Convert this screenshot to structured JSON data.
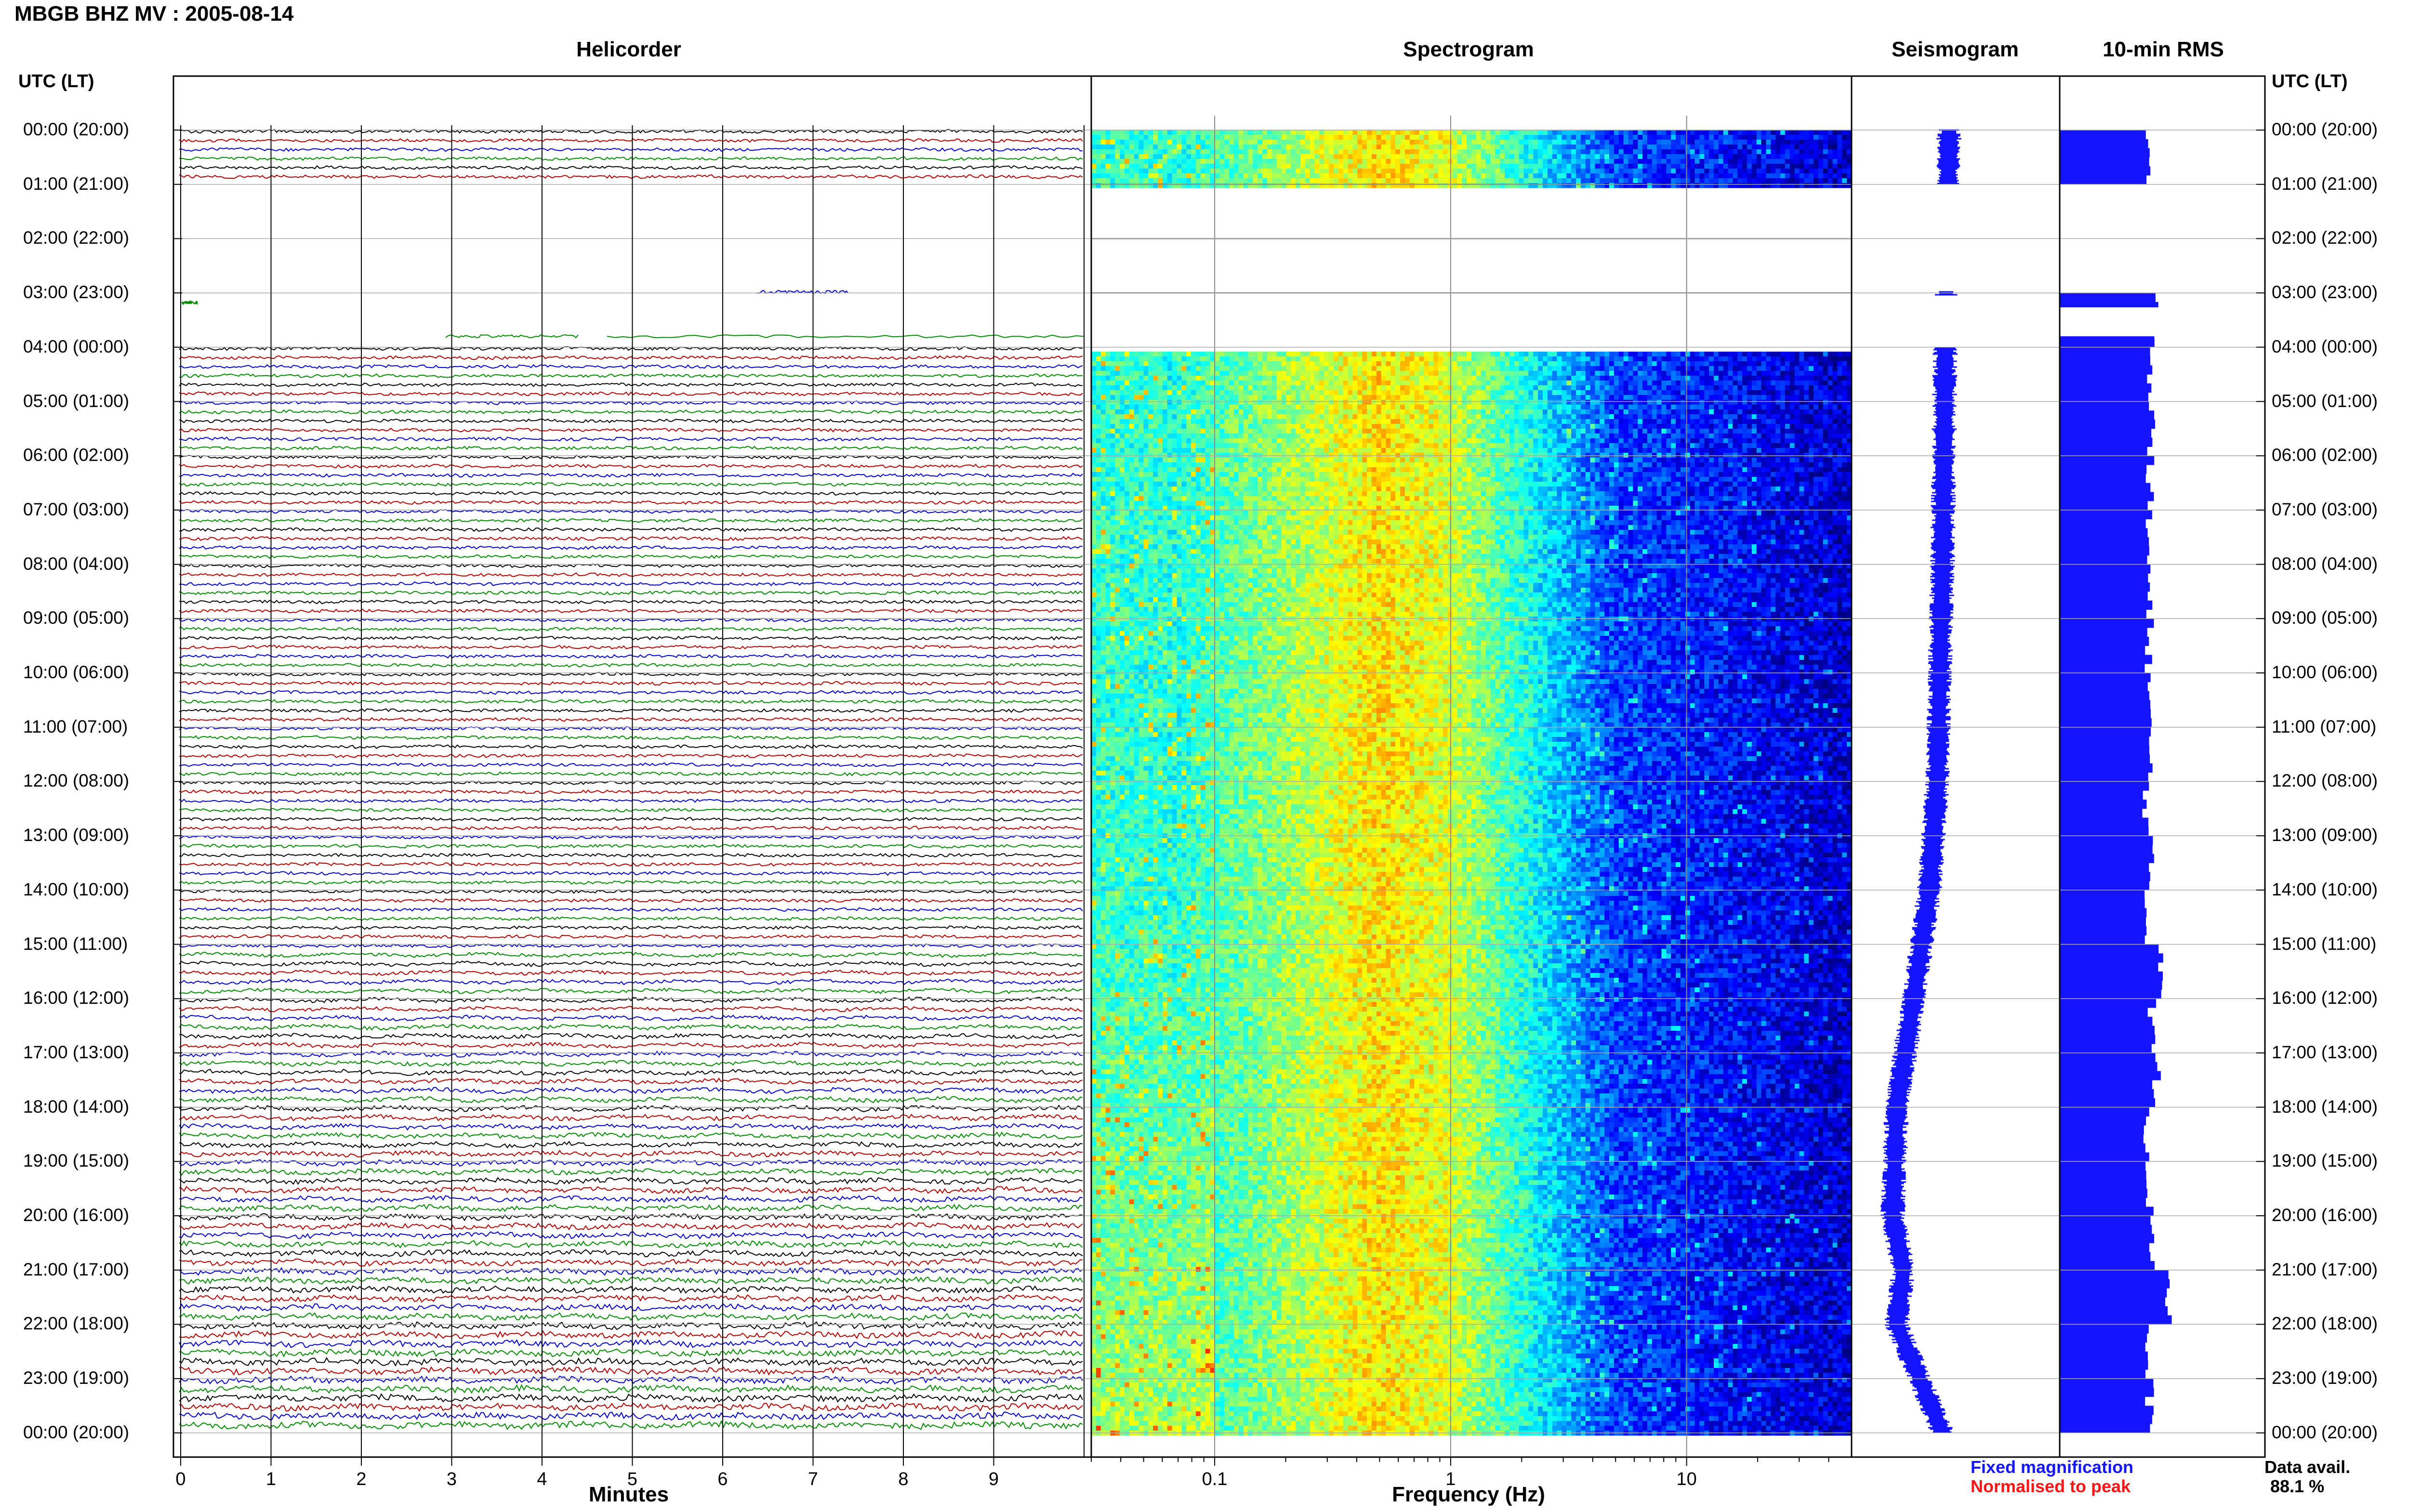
{
  "header": {
    "title": "MBGB BHZ MV : 2005-08-14"
  },
  "panels": {
    "helicorder": "Helicorder",
    "spectrogram": "Spectrogram",
    "seismogram": "Seismogram",
    "rms": "10-min RMS"
  },
  "time_axis": {
    "header_left": "UTC (LT)",
    "header_right": "UTC (LT)",
    "labels": [
      "00:00 (20:00)",
      "01:00 (21:00)",
      "02:00 (22:00)",
      "03:00 (23:00)",
      "04:00 (00:00)",
      "05:00 (01:00)",
      "06:00 (02:00)",
      "07:00 (03:00)",
      "08:00 (04:00)",
      "09:00 (05:00)",
      "10:00 (06:00)",
      "11:00 (07:00)",
      "12:00 (08:00)",
      "13:00 (09:00)",
      "14:00 (10:00)",
      "15:00 (11:00)",
      "16:00 (12:00)",
      "17:00 (13:00)",
      "18:00 (14:00)",
      "19:00 (15:00)",
      "20:00 (16:00)",
      "21:00 (17:00)",
      "22:00 (18:00)",
      "23:00 (19:00)",
      "00:00 (20:00)"
    ]
  },
  "footer": {
    "fixed_magnification": "Fixed magnification",
    "normalised_to_peak": "Normalised to peak",
    "data_avail_label": "Data avail.",
    "data_avail_value": "88.1 %"
  },
  "colors": {
    "trace_black": "#000000",
    "trace_red": "#b00000",
    "trace_blue": "#0000c8",
    "trace_green": "#008a00",
    "seismogram_fill": "#1414ff",
    "rms_fill": "#1414ff",
    "note_blue": "#1515ff",
    "note_red": "#ff1515"
  },
  "chart_data": [
    {
      "type": "line",
      "title": "Helicorder",
      "xlabel": "Minutes",
      "ylabel": "",
      "x_ticks": [
        "0",
        "1",
        "2",
        "3",
        "4",
        "5",
        "6",
        "7",
        "8",
        "9"
      ],
      "xlim": [
        0,
        10
      ],
      "grid": true,
      "rows_per_hour": 6,
      "trace_colors_cycle": [
        "black",
        "red",
        "blue",
        "green"
      ],
      "data_gaps": [
        {
          "from_utc": "01:00",
          "to_utc": "03:00",
          "note": "no data"
        },
        {
          "from_utc": "03:00",
          "to_utc": "04:00",
          "note": "short fragments only"
        }
      ]
    },
    {
      "type": "heatmap",
      "title": "Spectrogram",
      "xlabel": "Frequency (Hz)",
      "x_scale": "log",
      "x_ticks": [
        "0.1",
        "1",
        "10"
      ],
      "xlim": [
        0.03,
        50
      ],
      "colormap": "jet",
      "dominant_band_hz": [
        0.15,
        1.0
      ],
      "data_gaps": [
        {
          "from_utc": "01:00",
          "to_utc": "04:00"
        }
      ]
    },
    {
      "type": "area",
      "title": "Seismogram",
      "note": "Fixed magnification",
      "approx_offset_by_hour": [
        {
          "utc": "00:00",
          "offset": 0.45
        },
        {
          "utc": "04:00",
          "offset": 0.42
        },
        {
          "utc": "08:00",
          "offset": 0.4
        },
        {
          "utc": "12:00",
          "offset": 0.36
        },
        {
          "utc": "14:00",
          "offset": 0.3
        },
        {
          "utc": "16:00",
          "offset": 0.18
        },
        {
          "utc": "18:00",
          "offset": 0.05
        },
        {
          "utc": "20:00",
          "offset": 0.02
        },
        {
          "utc": "21:00",
          "offset": 0.1
        },
        {
          "utc": "22:00",
          "offset": 0.05
        },
        {
          "utc": "24:00",
          "offset": 0.4
        }
      ]
    },
    {
      "type": "bar",
      "title": "10-min RMS",
      "orientation": "horizontal",
      "note": "Normalised to peak",
      "ylim": [
        0,
        1
      ],
      "bars_hourly_normalized": [
        {
          "utc": "00:00",
          "value": 0.72
        },
        {
          "utc": "01:00",
          "value": 0.0
        },
        {
          "utc": "02:00",
          "value": 0.0
        },
        {
          "utc": "03:00",
          "value": 0.82
        },
        {
          "utc": "04:00",
          "value": 0.74
        },
        {
          "utc": "05:00",
          "value": 0.76
        },
        {
          "utc": "06:00",
          "value": 0.74
        },
        {
          "utc": "07:00",
          "value": 0.73
        },
        {
          "utc": "08:00",
          "value": 0.73
        },
        {
          "utc": "09:00",
          "value": 0.74
        },
        {
          "utc": "10:00",
          "value": 0.73
        },
        {
          "utc": "11:00",
          "value": 0.74
        },
        {
          "utc": "12:00",
          "value": 0.72
        },
        {
          "utc": "13:00",
          "value": 0.74
        },
        {
          "utc": "14:00",
          "value": 0.72
        },
        {
          "utc": "15:00",
          "value": 0.85
        },
        {
          "utc": "16:00",
          "value": 0.76
        },
        {
          "utc": "17:00",
          "value": 0.8
        },
        {
          "utc": "18:00",
          "value": 0.73
        },
        {
          "utc": "19:00",
          "value": 0.74
        },
        {
          "utc": "20:00",
          "value": 0.77
        },
        {
          "utc": "21:00",
          "value": 0.9
        },
        {
          "utc": "22:00",
          "value": 0.72
        },
        {
          "utc": "23:00",
          "value": 0.74
        }
      ]
    }
  ]
}
